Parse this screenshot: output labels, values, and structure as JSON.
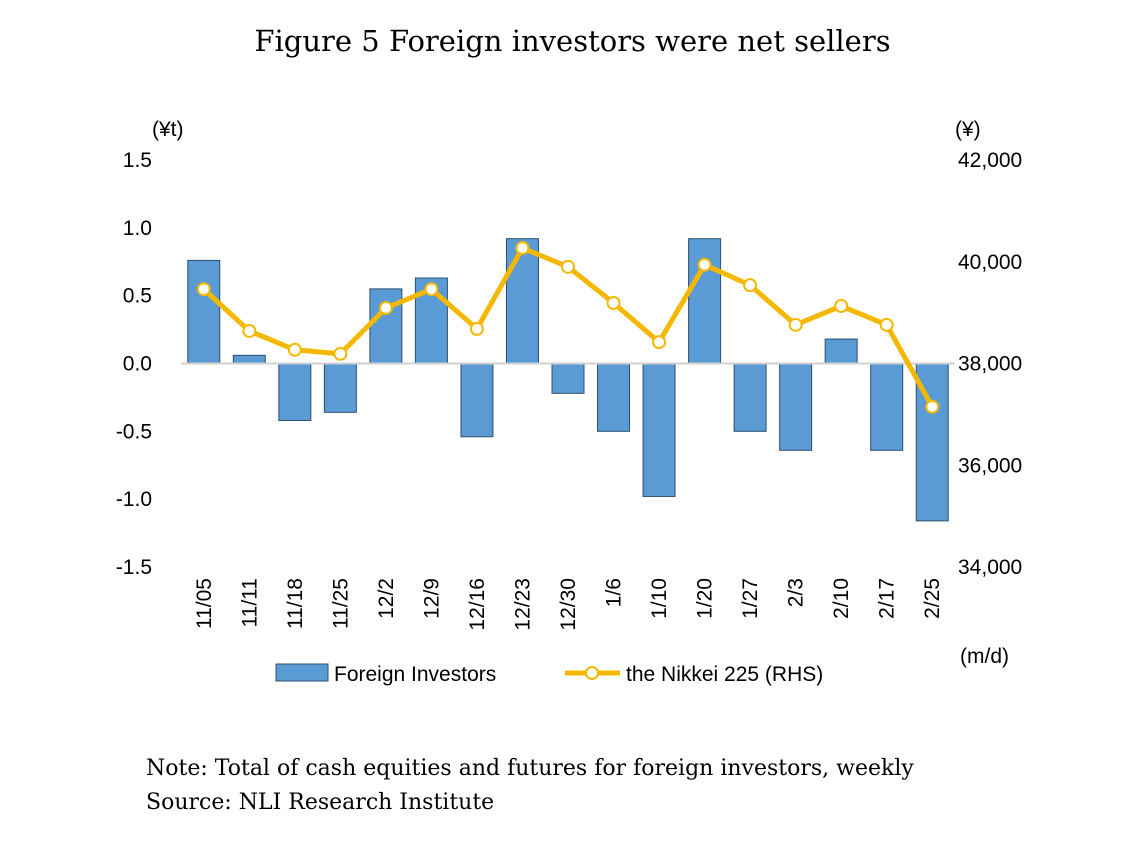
{
  "title": "Figure 5 Foreign investors were net sellers",
  "note": "Note: Total of cash equities and futures for foreign investors, weekly",
  "source": "Source: NLI Research Institute",
  "chart_data": {
    "type": "bar+line",
    "title": "Figure 5 Foreign investors were net sellers",
    "categories": [
      "11/05",
      "11/11",
      "11/18",
      "11/25",
      "12/2",
      "12/9",
      "12/16",
      "12/23",
      "12/30",
      "1/6",
      "1/10",
      "1/20",
      "1/27",
      "2/3",
      "2/10",
      "2/17",
      "2/25"
    ],
    "xlabel": "(m/d)",
    "left_axis": {
      "label": "(¥t)",
      "ylim": [
        -1.5,
        1.5
      ],
      "ticks": [
        "1.5",
        "1.0",
        "0.5",
        "0.0",
        "-0.5",
        "-1.0",
        "-1.5"
      ],
      "tick_values": [
        1.5,
        1.0,
        0.5,
        0,
        -0.5,
        -1.0,
        -1.5
      ]
    },
    "right_axis": {
      "label": "(¥)",
      "ylim": [
        34000,
        42000
      ],
      "ticks": [
        "42,000",
        "40,000",
        "38,000",
        "36,000",
        "34,000"
      ],
      "tick_values": [
        42000,
        40000,
        38000,
        36000,
        34000
      ]
    },
    "series": [
      {
        "name": "Foreign Investors",
        "type": "bar",
        "axis": "left",
        "color": "#5b9bd5",
        "values": [
          0.76,
          0.06,
          -0.42,
          -0.36,
          0.55,
          0.63,
          -0.54,
          0.92,
          -0.22,
          -0.5,
          -0.98,
          0.92,
          -0.5,
          -0.64,
          0.18,
          -0.64,
          -1.16
        ]
      },
      {
        "name": "the Nikkei 225 (RHS)",
        "type": "line",
        "axis": "right",
        "color": "#f5b800",
        "values": [
          39460,
          38640,
          38270,
          38190,
          39090,
          39460,
          38680,
          40270,
          39900,
          39190,
          38420,
          39940,
          39540,
          38760,
          39130,
          38760,
          37150
        ]
      }
    ],
    "grid": false,
    "legend": "bottom"
  }
}
